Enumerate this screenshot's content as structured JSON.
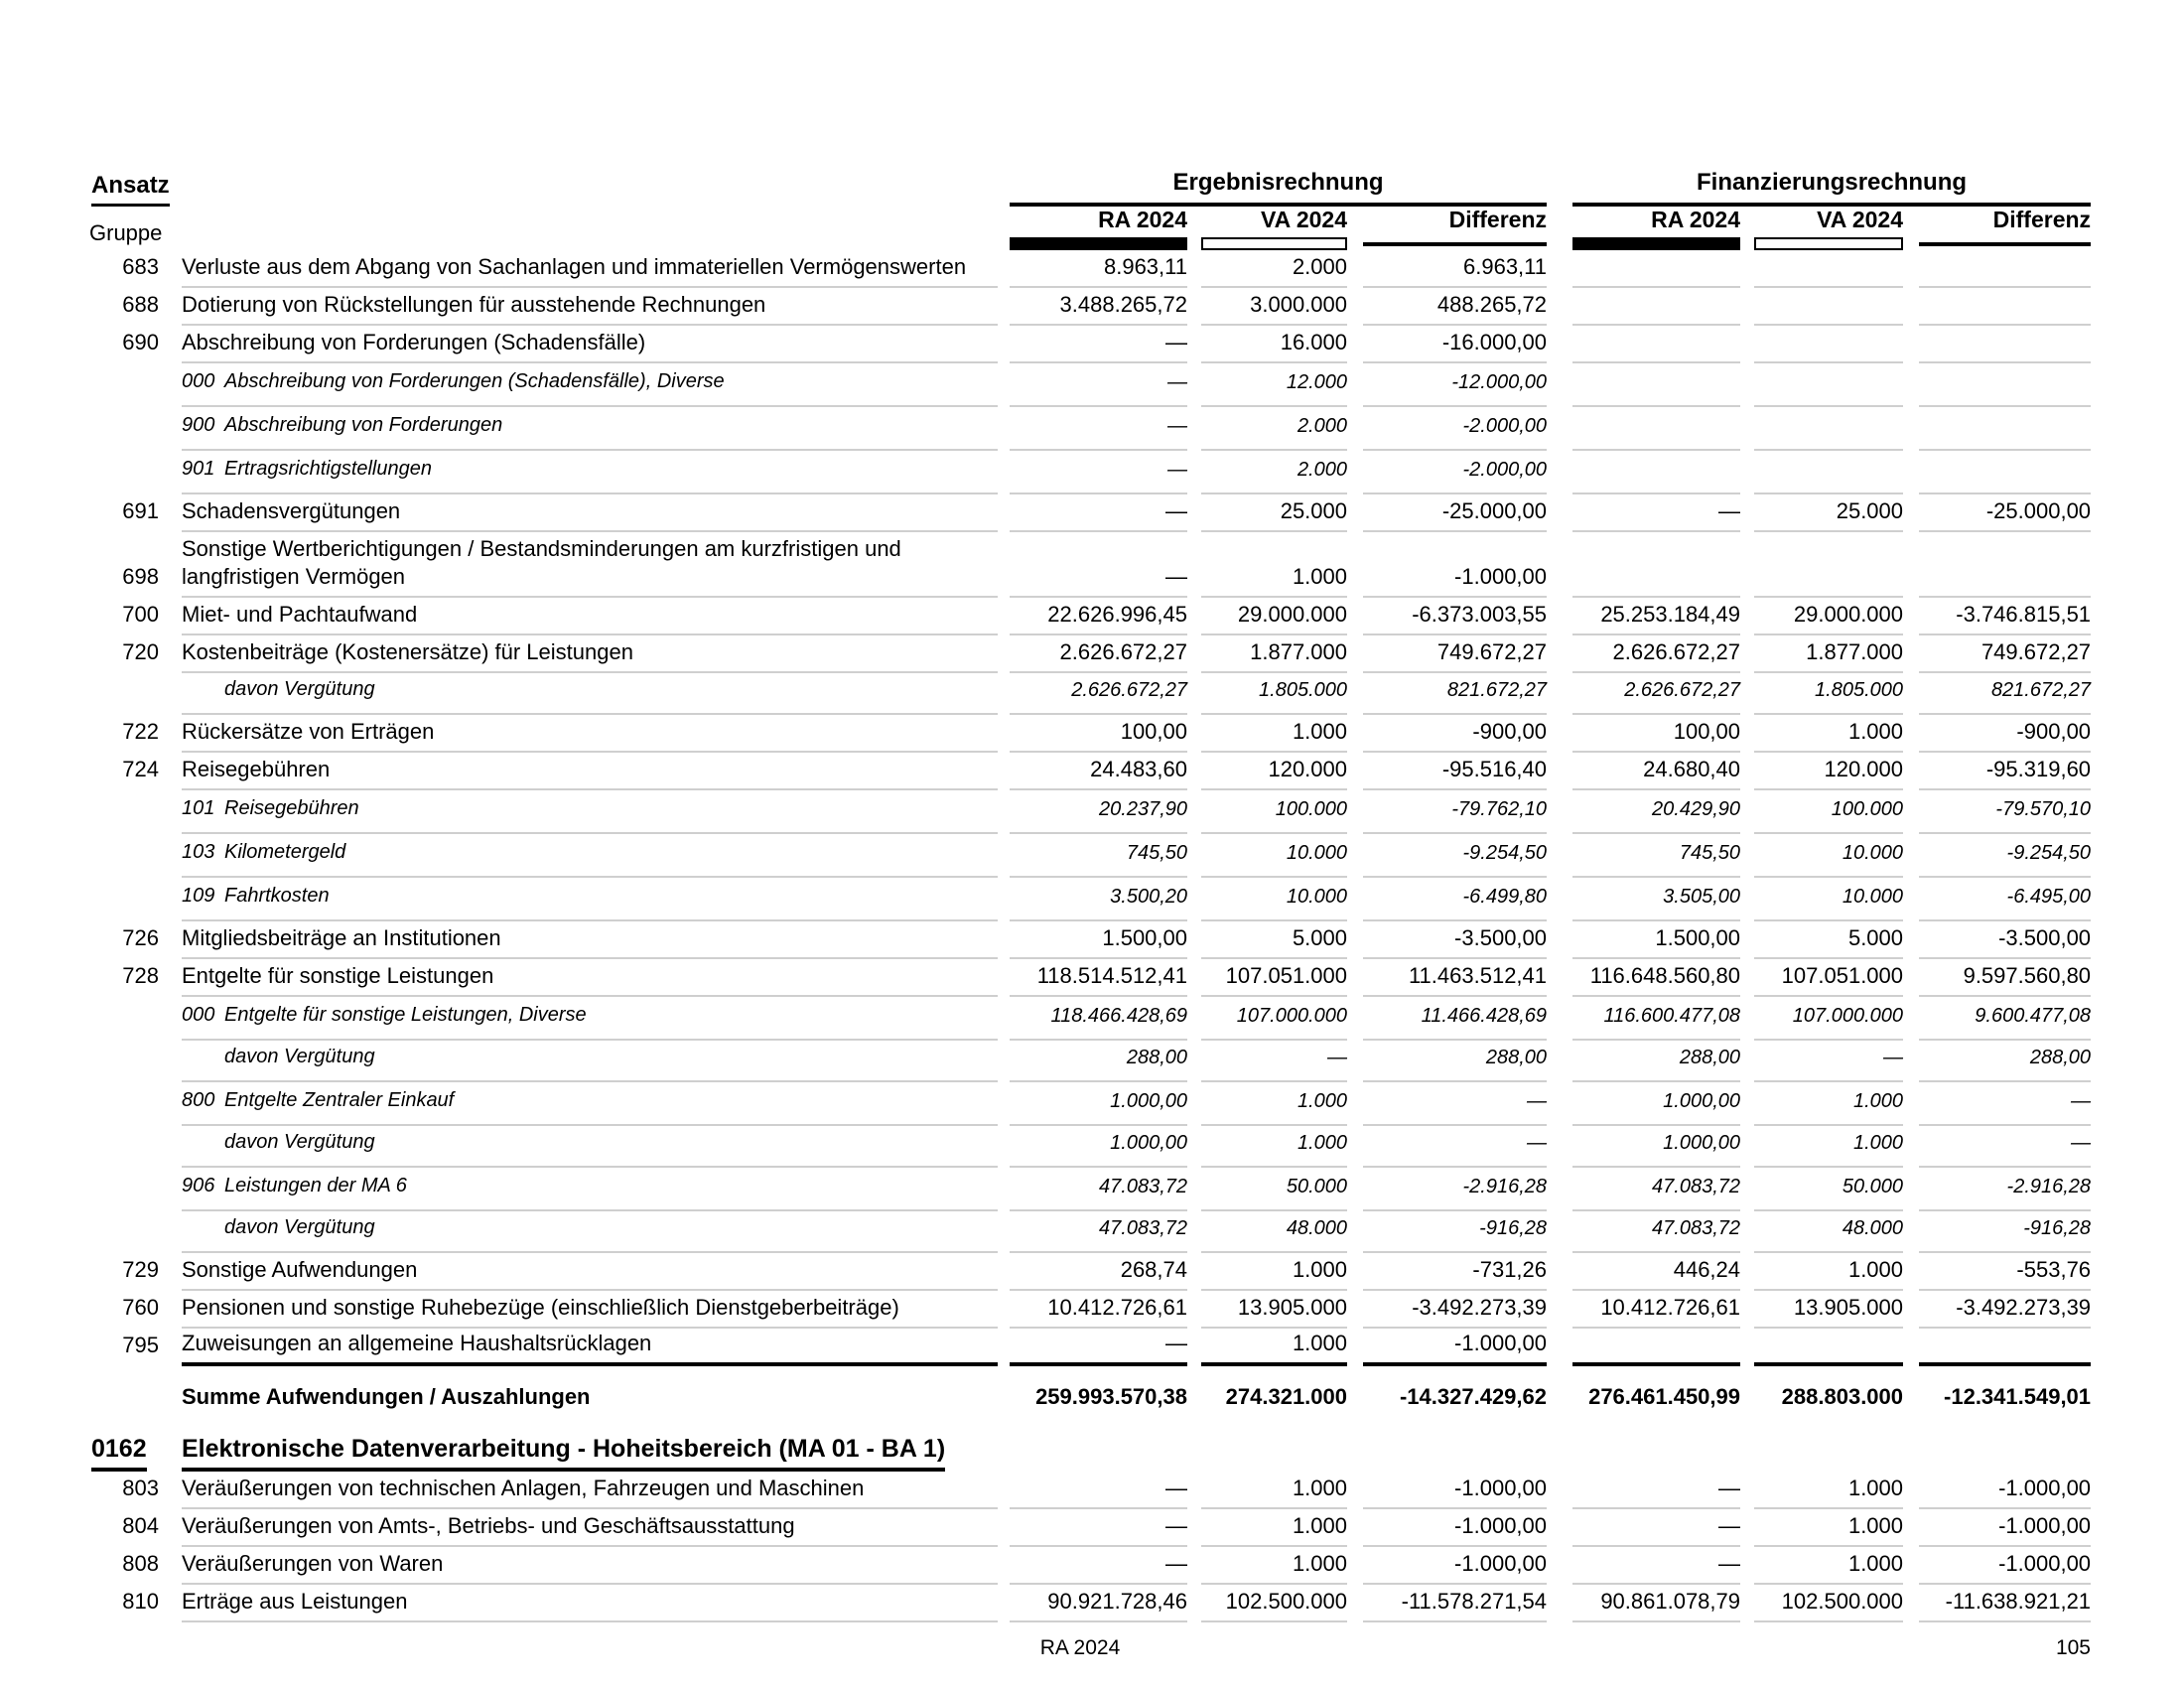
{
  "header": {
    "ansatz_label": "Ansatz",
    "gruppe_label": "Gruppe",
    "groups": [
      {
        "title": "Ergebnisrechnung",
        "columns": [
          "RA 2024",
          "VA 2024",
          "Differenz"
        ]
      },
      {
        "title": "Finanzierungsrechnung",
        "columns": [
          "RA 2024",
          "VA 2024",
          "Differenz"
        ]
      }
    ],
    "legend_styles": [
      "filled-black-bar",
      "outlined-white-bar",
      "thin-black-line"
    ]
  },
  "table": {
    "rows": [
      {
        "type": "main",
        "num": "683",
        "label": "Verluste aus dem Abgang von Sachanlagen und immateriellen Vermögenswerten",
        "values": [
          "8.963,11",
          "2.000",
          "6.963,11",
          "",
          "",
          ""
        ]
      },
      {
        "type": "main",
        "num": "688",
        "label": "Dotierung von Rückstellungen für ausstehende Rechnungen",
        "values": [
          "3.488.265,72",
          "3.000.000",
          "488.265,72",
          "",
          "",
          ""
        ]
      },
      {
        "type": "main",
        "num": "690",
        "label": "Abschreibung von Forderungen (Schadensfälle)",
        "values": [
          "—",
          "16.000",
          "-16.000,00",
          "",
          "",
          ""
        ]
      },
      {
        "type": "sub",
        "num": "000",
        "label": "Abschreibung von Forderungen (Schadensfälle), Diverse",
        "values": [
          "—",
          "12.000",
          "-12.000,00",
          "",
          "",
          ""
        ]
      },
      {
        "type": "sub",
        "num": "900",
        "label": "Abschreibung von Forderungen",
        "values": [
          "—",
          "2.000",
          "-2.000,00",
          "",
          "",
          ""
        ]
      },
      {
        "type": "sub",
        "num": "901",
        "label": "Ertragsrichtigstellungen",
        "values": [
          "—",
          "2.000",
          "-2.000,00",
          "",
          "",
          ""
        ]
      },
      {
        "type": "main",
        "num": "691",
        "label": "Schadensvergütungen",
        "values": [
          "—",
          "25.000",
          "-25.000,00",
          "—",
          "25.000",
          "-25.000,00"
        ]
      },
      {
        "type": "main2",
        "num": "698",
        "label": "Sonstige Wertberichtigungen / Bestandsminderungen am kurzfristigen und langfristigen Vermögen",
        "values": [
          "—",
          "1.000",
          "-1.000,00",
          "",
          "",
          ""
        ]
      },
      {
        "type": "main",
        "num": "700",
        "label": "Miet- und Pachtaufwand",
        "values": [
          "22.626.996,45",
          "29.000.000",
          "-6.373.003,55",
          "25.253.184,49",
          "29.000.000",
          "-3.746.815,51"
        ]
      },
      {
        "type": "main",
        "num": "720",
        "label": "Kostenbeiträge (Kostenersätze) für Leistungen",
        "values": [
          "2.626.672,27",
          "1.877.000",
          "749.672,27",
          "2.626.672,27",
          "1.877.000",
          "749.672,27"
        ]
      },
      {
        "type": "davon",
        "num": "",
        "label": "davon Vergütung",
        "values": [
          "2.626.672,27",
          "1.805.000",
          "821.672,27",
          "2.626.672,27",
          "1.805.000",
          "821.672,27"
        ]
      },
      {
        "type": "main",
        "num": "722",
        "label": "Rückersätze von Erträgen",
        "values": [
          "100,00",
          "1.000",
          "-900,00",
          "100,00",
          "1.000",
          "-900,00"
        ]
      },
      {
        "type": "main",
        "num": "724",
        "label": "Reisegebühren",
        "values": [
          "24.483,60",
          "120.000",
          "-95.516,40",
          "24.680,40",
          "120.000",
          "-95.319,60"
        ]
      },
      {
        "type": "sub",
        "num": "101",
        "label": "Reisegebühren",
        "values": [
          "20.237,90",
          "100.000",
          "-79.762,10",
          "20.429,90",
          "100.000",
          "-79.570,10"
        ]
      },
      {
        "type": "sub",
        "num": "103",
        "label": "Kilometergeld",
        "values": [
          "745,50",
          "10.000",
          "-9.254,50",
          "745,50",
          "10.000",
          "-9.254,50"
        ]
      },
      {
        "type": "sub",
        "num": "109",
        "label": "Fahrtkosten",
        "values": [
          "3.500,20",
          "10.000",
          "-6.499,80",
          "3.505,00",
          "10.000",
          "-6.495,00"
        ]
      },
      {
        "type": "main",
        "num": "726",
        "label": "Mitgliedsbeiträge an Institutionen",
        "values": [
          "1.500,00",
          "5.000",
          "-3.500,00",
          "1.500,00",
          "5.000",
          "-3.500,00"
        ]
      },
      {
        "type": "main",
        "num": "728",
        "label": "Entgelte für sonstige Leistungen",
        "values": [
          "118.514.512,41",
          "107.051.000",
          "11.463.512,41",
          "116.648.560,80",
          "107.051.000",
          "9.597.560,80"
        ]
      },
      {
        "type": "sub",
        "num": "000",
        "label": "Entgelte für sonstige Leistungen, Diverse",
        "values": [
          "118.466.428,69",
          "107.000.000",
          "11.466.428,69",
          "116.600.477,08",
          "107.000.000",
          "9.600.477,08"
        ]
      },
      {
        "type": "davon",
        "num": "",
        "label": "davon Vergütung",
        "values": [
          "288,00",
          "—",
          "288,00",
          "288,00",
          "—",
          "288,00"
        ]
      },
      {
        "type": "sub",
        "num": "800",
        "label": "Entgelte Zentraler Einkauf",
        "values": [
          "1.000,00",
          "1.000",
          "—",
          "1.000,00",
          "1.000",
          "—"
        ]
      },
      {
        "type": "davon",
        "num": "",
        "label": "davon Vergütung",
        "values": [
          "1.000,00",
          "1.000",
          "—",
          "1.000,00",
          "1.000",
          "—"
        ]
      },
      {
        "type": "sub",
        "num": "906",
        "label": "Leistungen der MA 6",
        "values": [
          "47.083,72",
          "50.000",
          "-2.916,28",
          "47.083,72",
          "50.000",
          "-2.916,28"
        ]
      },
      {
        "type": "davon",
        "num": "",
        "label": "davon Vergütung",
        "values": [
          "47.083,72",
          "48.000",
          "-916,28",
          "47.083,72",
          "48.000",
          "-916,28"
        ]
      },
      {
        "type": "main",
        "num": "729",
        "label": "Sonstige Aufwendungen",
        "values": [
          "268,74",
          "1.000",
          "-731,26",
          "446,24",
          "1.000",
          "-553,76"
        ]
      },
      {
        "type": "main",
        "num": "760",
        "label": "Pensionen und sonstige Ruhebezüge (einschließlich Dienstgeberbeiträge)",
        "values": [
          "10.412.726,61",
          "13.905.000",
          "-3.492.273,39",
          "10.412.726,61",
          "13.905.000",
          "-3.492.273,39"
        ]
      },
      {
        "type": "main",
        "num": "795",
        "label": "Zuweisungen an allgemeine Haushaltsrücklagen",
        "thick": true,
        "values": [
          "—",
          "1.000",
          "-1.000,00",
          "",
          "",
          ""
        ]
      },
      {
        "type": "summe",
        "num": "",
        "label": "Summe Aufwendungen / Auszahlungen",
        "values": [
          "259.993.570,38",
          "274.321.000",
          "-14.327.429,62",
          "276.461.450,99",
          "288.803.000",
          "-12.341.549,01"
        ]
      },
      {
        "type": "heading",
        "num": "0162",
        "label": "Elektronische Datenverarbeitung - Hoheitsbereich (MA 01 - BA 1)",
        "values": [
          "",
          "",
          "",
          "",
          "",
          ""
        ]
      },
      {
        "type": "main",
        "num": "803",
        "label": "Veräußerungen von technischen Anlagen, Fahrzeugen und Maschinen",
        "values": [
          "—",
          "1.000",
          "-1.000,00",
          "—",
          "1.000",
          "-1.000,00"
        ]
      },
      {
        "type": "main",
        "num": "804",
        "label": "Veräußerungen von Amts-, Betriebs- und Geschäftsausstattung",
        "values": [
          "—",
          "1.000",
          "-1.000,00",
          "—",
          "1.000",
          "-1.000,00"
        ]
      },
      {
        "type": "main",
        "num": "808",
        "label": "Veräußerungen von Waren",
        "values": [
          "—",
          "1.000",
          "-1.000,00",
          "—",
          "1.000",
          "-1.000,00"
        ]
      },
      {
        "type": "main",
        "num": "810",
        "label": "Erträge aus Leistungen",
        "values": [
          "90.921.728,46",
          "102.500.000",
          "-11.578.271,54",
          "90.861.078,79",
          "102.500.000",
          "-11.638.921,21"
        ]
      }
    ]
  },
  "footer": {
    "center_label": "RA 2024",
    "page_number": "105"
  },
  "colors": {
    "text": "#000000",
    "rule_gray": "#cfcfcf",
    "heavy_rule": "#000000"
  }
}
